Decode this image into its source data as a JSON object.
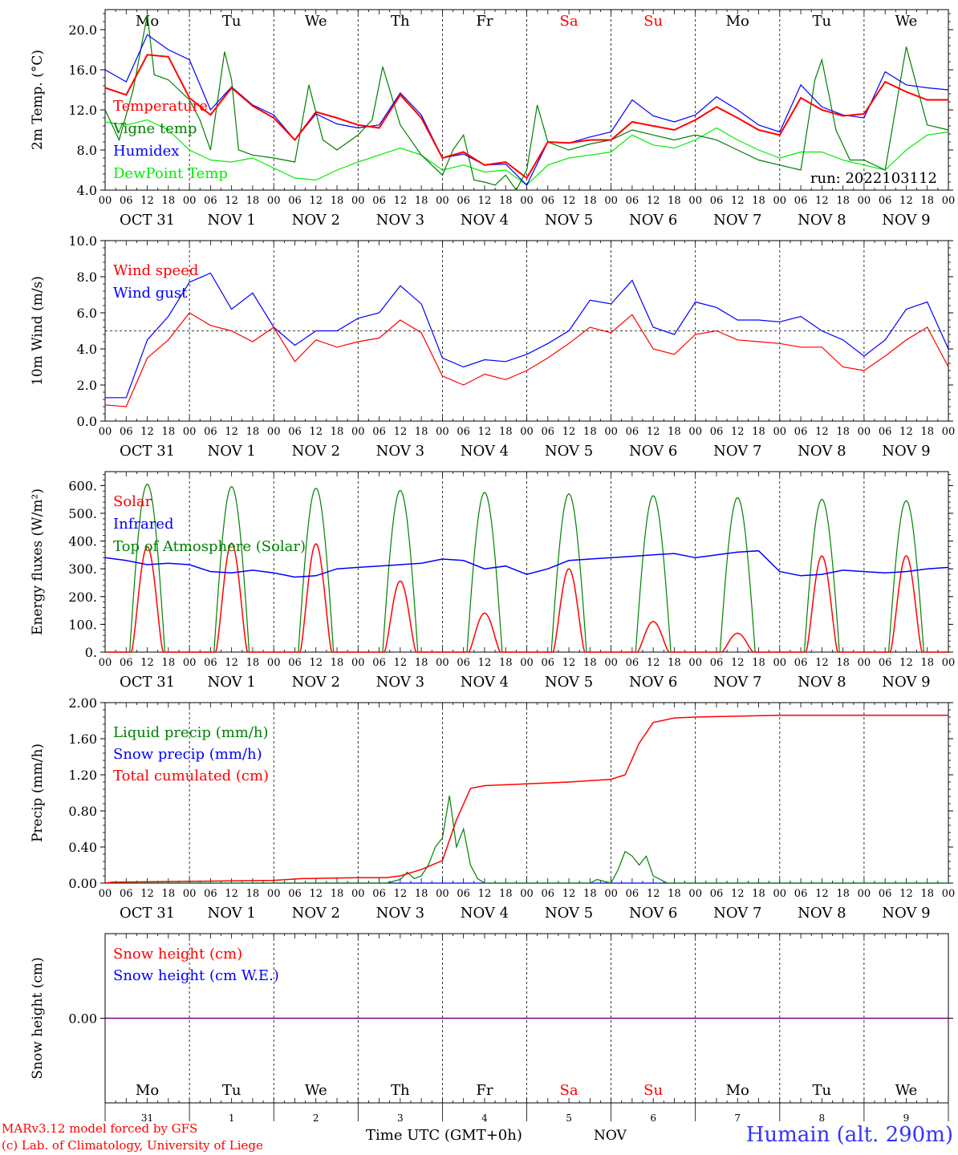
{
  "days": [
    "Mo",
    "Tu",
    "We",
    "Th",
    "Fr",
    "Sa",
    "Su",
    "Mo",
    "Tu",
    "We"
  ],
  "weekend_days": [
    5,
    6
  ],
  "date_labels": [
    "OCT 31",
    "NOV  1",
    "NOV  2",
    "NOV  3",
    "NOV  4",
    "NOV  5",
    "NOV  6",
    "NOV  7",
    "NOV  8",
    "NOV  9"
  ],
  "hour_ticks": [
    "00",
    "06",
    "12",
    "18"
  ],
  "bottom_day_numbers": [
    "31",
    "1",
    "2",
    "3",
    "4",
    "5",
    "6",
    "7",
    "8",
    "9"
  ],
  "colors": {
    "red": "#ff0000",
    "green": "#008000",
    "blue": "#0000ff",
    "lightgreen": "#00ee00",
    "purple": "#800080",
    "grid": "#000000"
  },
  "footer": {
    "left_line1": "MARv3.12 model forced by GFS",
    "left_line2": "(c) Lab. of Climatology, University of Liege",
    "center": "Time UTC (GMT+0h)",
    "month": "NOV",
    "station": "Humain (alt. 290m)"
  },
  "chart_data": [
    {
      "type": "line",
      "ylabel": "2m Temp. (°C)",
      "ylim": [
        4,
        22
      ],
      "yticks": [
        "4.0",
        "8.0",
        "12.0",
        "16.0",
        "20.0"
      ],
      "yticks_values": [
        4,
        8,
        12,
        16,
        20
      ],
      "run_label": "run: 2022103112",
      "x_unit": "hours since 2022-10-31 00 UTC",
      "series": [
        {
          "name": "Temperature",
          "color": "red",
          "x": [
            0,
            6,
            12,
            18,
            24,
            30,
            36,
            42,
            48,
            54,
            60,
            66,
            72,
            78,
            84,
            90,
            96,
            102,
            108,
            114,
            120,
            126,
            132,
            138,
            144,
            150,
            156,
            162,
            168,
            174,
            180,
            186,
            192,
            198,
            204,
            210,
            216,
            222,
            228,
            234,
            240
          ],
          "y": [
            14.2,
            13.5,
            17.5,
            17.3,
            13.2,
            11.5,
            14.2,
            12.4,
            11.2,
            9.0,
            11.8,
            11.2,
            10.5,
            10.2,
            13.5,
            11.2,
            7.2,
            7.8,
            6.5,
            6.8,
            5.2,
            8.8,
            8.7,
            9.0,
            9.0,
            10.8,
            10.4,
            10.0,
            11.0,
            12.3,
            11.2,
            10.0,
            9.5,
            13.2,
            12.0,
            11.4,
            11.6,
            14.8,
            13.8,
            13.0,
            13.0
          ]
        },
        {
          "name": "Vigne temp",
          "color": "green",
          "x": [
            0,
            4,
            8,
            12,
            14,
            18,
            24,
            27,
            30,
            34,
            36,
            38,
            42,
            48,
            54,
            58,
            62,
            66,
            70,
            72,
            76,
            79,
            84,
            90,
            96,
            99,
            102,
            105,
            108,
            111,
            114,
            117,
            120,
            123,
            126,
            132,
            138,
            144,
            150,
            156,
            162,
            168,
            174,
            180,
            186,
            192,
            198,
            202,
            204,
            208,
            212,
            216,
            222,
            228,
            234,
            240
          ],
          "y": [
            12.0,
            9.0,
            14.0,
            21.5,
            15.5,
            15.0,
            13.0,
            11.0,
            8.0,
            17.8,
            15.0,
            8.0,
            7.5,
            7.2,
            6.8,
            14.5,
            9.0,
            8.0,
            9.0,
            9.5,
            11.0,
            16.3,
            10.5,
            7.5,
            5.5,
            8.0,
            9.5,
            5.0,
            4.8,
            4.5,
            5.5,
            4.0,
            6.0,
            12.5,
            8.8,
            8.0,
            8.6,
            9.0,
            10.0,
            9.5,
            9.0,
            9.5,
            9.0,
            8.0,
            7.0,
            6.5,
            6.0,
            15.0,
            17.0,
            10.0,
            7.0,
            7.0,
            6.0,
            18.3,
            10.5,
            10.0
          ]
        },
        {
          "name": "Humidex",
          "color": "blue",
          "x": [
            0,
            6,
            12,
            18,
            24,
            30,
            36,
            42,
            48,
            54,
            60,
            66,
            72,
            78,
            84,
            90,
            96,
            102,
            108,
            114,
            120,
            126,
            132,
            138,
            144,
            150,
            156,
            162,
            168,
            174,
            180,
            186,
            192,
            198,
            204,
            210,
            216,
            222,
            228,
            234,
            240
          ],
          "y": [
            16.0,
            14.8,
            19.5,
            18.0,
            17.0,
            12.0,
            14.3,
            12.5,
            11.5,
            9.0,
            11.6,
            10.6,
            10.2,
            10.5,
            13.7,
            11.5,
            7.2,
            7.6,
            6.5,
            6.6,
            4.5,
            8.8,
            8.7,
            9.3,
            9.8,
            13.0,
            11.4,
            10.8,
            11.5,
            13.3,
            12.0,
            10.5,
            9.8,
            14.5,
            12.3,
            11.5,
            11.2,
            15.8,
            14.5,
            14.2,
            14.0
          ]
        },
        {
          "name": "DewPoint Temp",
          "color": "lightgreen",
          "x": [
            0,
            6,
            12,
            18,
            24,
            30,
            36,
            42,
            48,
            54,
            60,
            66,
            72,
            78,
            84,
            90,
            96,
            102,
            108,
            114,
            120,
            126,
            132,
            138,
            144,
            150,
            156,
            162,
            168,
            174,
            180,
            186,
            192,
            198,
            204,
            210,
            216,
            222,
            228,
            234,
            240
          ],
          "y": [
            10.8,
            10.5,
            11.0,
            10.0,
            8.0,
            7.0,
            6.8,
            7.2,
            6.2,
            5.2,
            5.0,
            6.0,
            6.8,
            7.5,
            8.2,
            7.5,
            6.0,
            6.5,
            5.8,
            6.0,
            4.5,
            6.5,
            7.2,
            7.5,
            7.8,
            9.5,
            8.5,
            8.2,
            9.0,
            10.2,
            9.0,
            8.0,
            7.2,
            7.8,
            7.8,
            7.0,
            6.5,
            6.0,
            8.0,
            9.5,
            9.8
          ]
        }
      ]
    },
    {
      "type": "line",
      "ylabel": "10m Wind (m/s)",
      "ylim": [
        0,
        10
      ],
      "yticks": [
        "0.0",
        "2.0",
        "4.0",
        "6.0",
        "8.0",
        "10.0"
      ],
      "yticks_values": [
        0,
        2,
        4,
        6,
        8,
        10
      ],
      "reference_line": 5,
      "x_unit": "hours since 2022-10-31 00 UTC",
      "series": [
        {
          "name": "Wind speed",
          "color": "red",
          "x": [
            0,
            6,
            12,
            18,
            24,
            30,
            36,
            42,
            48,
            54,
            60,
            66,
            72,
            78,
            84,
            90,
            96,
            102,
            108,
            114,
            120,
            126,
            132,
            138,
            144,
            150,
            156,
            162,
            168,
            174,
            180,
            186,
            192,
            198,
            204,
            210,
            216,
            222,
            228,
            234,
            240
          ],
          "y": [
            0.9,
            0.8,
            3.5,
            4.5,
            6.0,
            5.3,
            5.0,
            4.4,
            5.2,
            3.3,
            4.5,
            4.1,
            4.4,
            4.6,
            5.6,
            4.9,
            2.5,
            2.0,
            2.6,
            2.3,
            2.8,
            3.5,
            4.3,
            5.2,
            4.9,
            5.9,
            4.0,
            3.7,
            4.8,
            5.0,
            4.5,
            4.4,
            4.3,
            4.1,
            4.1,
            3.0,
            2.8,
            3.6,
            4.5,
            5.2,
            3.0
          ]
        },
        {
          "name": "Wind gust",
          "color": "blue",
          "x": [
            0,
            6,
            12,
            18,
            24,
            30,
            36,
            42,
            48,
            54,
            60,
            66,
            72,
            78,
            84,
            90,
            96,
            102,
            108,
            114,
            120,
            126,
            132,
            138,
            144,
            150,
            156,
            162,
            168,
            174,
            180,
            186,
            192,
            198,
            204,
            210,
            216,
            222,
            228,
            234,
            240
          ],
          "y": [
            1.3,
            1.3,
            4.5,
            5.8,
            7.7,
            8.2,
            6.2,
            7.1,
            5.2,
            4.2,
            5.0,
            5.0,
            5.7,
            6.0,
            7.5,
            6.5,
            3.5,
            3.0,
            3.4,
            3.3,
            3.7,
            4.3,
            5.0,
            6.7,
            6.5,
            7.8,
            5.2,
            4.8,
            6.6,
            6.3,
            5.6,
            5.6,
            5.5,
            5.8,
            5.0,
            4.5,
            3.6,
            4.5,
            6.2,
            6.6,
            4.0
          ]
        }
      ]
    },
    {
      "type": "line",
      "ylabel": "Energy fluxes (W/m²)",
      "ylim": [
        0,
        650
      ],
      "yticks": [
        "0.",
        "100.",
        "200.",
        "300.",
        "400.",
        "500.",
        "600."
      ],
      "yticks_values": [
        0,
        100,
        200,
        300,
        400,
        500,
        600
      ],
      "x_unit": "hours since 2022-10-31 00 UTC",
      "toa_peaks": [
        605,
        596,
        590,
        582,
        575,
        570,
        563,
        556,
        550,
        545
      ],
      "solar_peaks": [
        380,
        392,
        390,
        256,
        140,
        300,
        110,
        68,
        346,
        347
      ],
      "series": [
        {
          "name": "Solar",
          "color": "red"
        },
        {
          "name": "Infrared",
          "color": "blue",
          "x": [
            0,
            6,
            12,
            18,
            24,
            30,
            36,
            42,
            48,
            54,
            60,
            66,
            72,
            78,
            84,
            90,
            96,
            102,
            108,
            114,
            120,
            126,
            132,
            138,
            144,
            150,
            156,
            162,
            168,
            174,
            180,
            186,
            192,
            198,
            204,
            210,
            216,
            222,
            228,
            234,
            240
          ],
          "y": [
            340,
            330,
            315,
            320,
            315,
            290,
            285,
            295,
            285,
            270,
            275,
            300,
            305,
            310,
            315,
            320,
            335,
            330,
            300,
            310,
            280,
            300,
            330,
            335,
            340,
            345,
            350,
            355,
            340,
            350,
            360,
            365,
            290,
            275,
            280,
            295,
            290,
            285,
            290,
            300,
            305
          ]
        },
        {
          "name": "Top of Atmosphere (Solar)",
          "color": "green"
        }
      ]
    },
    {
      "type": "line",
      "ylabel": "Precip (mm/h)",
      "ylim": [
        0,
        2.0
      ],
      "yticks": [
        "0.00",
        "0.40",
        "0.80",
        "1.20",
        "1.60",
        "2.00"
      ],
      "yticks_values": [
        0,
        0.4,
        0.8,
        1.2,
        1.6,
        2.0
      ],
      "x_unit": "hours since 2022-10-31 00 UTC",
      "series": [
        {
          "name": "Liquid precip (mm/h)",
          "color": "green",
          "x": [
            0,
            80,
            84,
            86,
            88,
            90,
            92,
            94,
            96,
            98,
            100,
            102,
            104,
            106,
            108,
            110,
            112,
            116,
            120,
            126,
            138,
            140,
            144,
            146,
            148,
            150,
            152,
            154,
            156,
            160,
            240
          ],
          "y": [
            0,
            0,
            0.04,
            0.12,
            0.05,
            0.08,
            0.2,
            0.4,
            0.5,
            0.97,
            0.4,
            0.6,
            0.2,
            0.05,
            0,
            0,
            0,
            0,
            0,
            0,
            0,
            0.04,
            0,
            0.15,
            0.35,
            0.3,
            0.2,
            0.3,
            0.08,
            0,
            0
          ]
        },
        {
          "name": "Snow precip (mm/h)",
          "color": "blue",
          "x": [
            0,
            240
          ],
          "y": [
            0,
            0
          ]
        },
        {
          "name": "Total cumulated (cm)",
          "color": "red",
          "x": [
            0,
            2,
            24,
            48,
            56,
            72,
            80,
            84,
            90,
            96,
            100,
            104,
            108,
            120,
            132,
            144,
            148,
            152,
            156,
            162,
            168,
            180,
            192,
            204,
            216,
            228,
            240
          ],
          "y": [
            0,
            0.01,
            0.02,
            0.03,
            0.05,
            0.06,
            0.06,
            0.08,
            0.15,
            0.25,
            0.7,
            1.05,
            1.08,
            1.1,
            1.12,
            1.15,
            1.2,
            1.55,
            1.78,
            1.83,
            1.84,
            1.85,
            1.86,
            1.86,
            1.86,
            1.86,
            1.86
          ]
        }
      ]
    },
    {
      "type": "line",
      "ylabel": "Snow height (cm)",
      "ylim": [
        -1,
        1
      ],
      "yticks": [
        "0.00"
      ],
      "yticks_values": [
        0
      ],
      "x_unit": "hours since 2022-10-31 00 UTC",
      "series": [
        {
          "name": "Snow height (cm)",
          "color": "red",
          "x": [
            0,
            240
          ],
          "y": [
            0,
            0
          ]
        },
        {
          "name": "Snow height (cm W.E.)",
          "color": "blue",
          "x": [
            0,
            240
          ],
          "y": [
            0,
            0
          ]
        }
      ]
    }
  ]
}
